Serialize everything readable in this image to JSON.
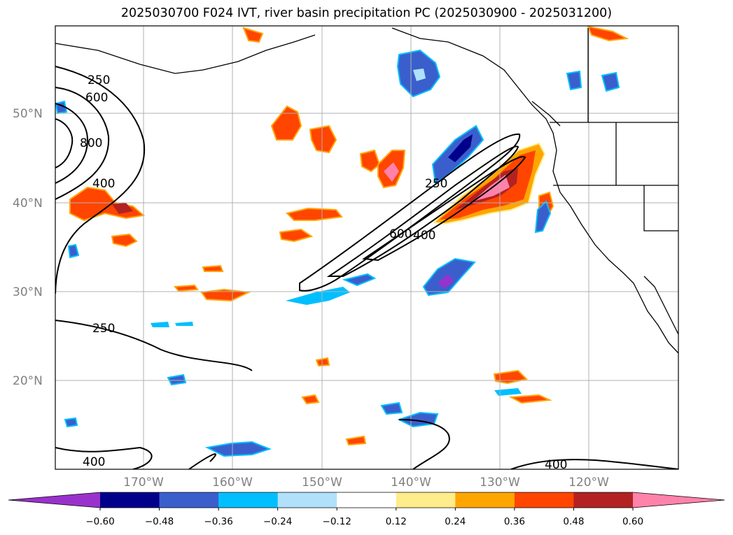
{
  "title": "2025030700 F024 IVT, river basin precipitation PC (2025030900 - 2025031200)",
  "map": {
    "lat_labels": [
      "50°N",
      "40°N",
      "30°N",
      "20°N"
    ],
    "lon_labels": [
      "170°W",
      "160°W",
      "150°W",
      "140°W",
      "130°W",
      "120°W"
    ],
    "extent": {
      "lon_min": -180,
      "lon_max": -110,
      "lat_min": 10,
      "lat_max": 60
    },
    "gridlines": true
  },
  "contours": {
    "field": "IVT",
    "labels": [
      "250",
      "600",
      "800",
      "400",
      "250",
      "600",
      "400",
      "250",
      "400",
      "400"
    ]
  },
  "colorbar": {
    "ticks": [
      "−0.60",
      "−0.48",
      "−0.36",
      "−0.24",
      "−0.12",
      "0.12",
      "0.24",
      "0.36",
      "0.48",
      "0.60"
    ],
    "colors": [
      "#9932cc",
      "#00008b",
      "#3a5fcd",
      "#00bfff",
      "#b0e0fa",
      "#ffffff",
      "#ffec8b",
      "#ffa500",
      "#ff4500",
      "#b22222",
      "#ff82ab"
    ]
  },
  "colors": {
    "grid": "#b0b0b0",
    "coast": "#000000",
    "axis_label": "#808080"
  }
}
